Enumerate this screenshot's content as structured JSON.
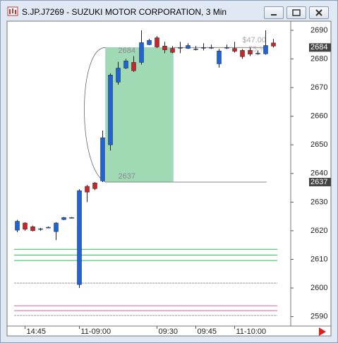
{
  "window_title": "S.JP.J7269 - SUZUKI MOTOR CORPORATION, 3 Min",
  "chart_data": {
    "type": "candlestick",
    "categories": [
      null,
      "14:45",
      null,
      null,
      null,
      null,
      null,
      null,
      "11-09:00",
      null,
      null,
      null,
      null,
      null,
      null,
      null,
      null,
      null,
      "09:30",
      null,
      null,
      null,
      null,
      "09:45",
      null,
      null,
      null,
      null,
      "11-10:00",
      null,
      null,
      null,
      null,
      null
    ],
    "open": [
      2620.2,
      2622.7,
      2621.4,
      2620.7,
      2621.2,
      2619.7,
      2623.9,
      2624.6,
      2601.2,
      2635.5,
      2636.7,
      2637.4,
      2650,
      2671.9,
      2676.8,
      2678.8,
      2678.8,
      2685,
      2687.4,
      2684.5,
      2683.7,
      2684,
      2683.7,
      2683.5,
      2684,
      2684,
      2678.3,
      2684,
      2683.7,
      2683,
      2683,
      2682,
      2681.8,
      2685.6
    ],
    "high": [
      2623.8,
      2623,
      2621.8,
      2621,
      2621.5,
      2623,
      2624.8,
      2624.8,
      2634.5,
      2636,
      2637,
      2655,
      2675,
      2679,
      2680,
      2681,
      2690,
      2687,
      2688,
      2686,
      2684.5,
      2686,
      2685.5,
      2684.5,
      2685.5,
      2685,
      2683.5,
      2685,
      2686,
      2683.5,
      2684,
      2683,
      2690,
      2687
    ],
    "low": [
      2619.5,
      2620,
      2619.8,
      2620,
      2621,
      2616.7,
      2623.7,
      2624.4,
      2600,
      2630,
      2634.2,
      2637,
      2648,
      2671,
      2676.5,
      2675.5,
      2678,
      2684.8,
      2683.8,
      2682,
      2682,
      2682,
      2683.5,
      2683,
      2683,
      2683.5,
      2677,
      2683.5,
      2682.2,
      2680,
      2681,
      2681.5,
      2681.5,
      2684
    ],
    "close": [
      2623.3,
      2620.5,
      2620,
      2620.7,
      2621.2,
      2622.7,
      2624.6,
      2624.6,
      2634,
      2633.5,
      2634.7,
      2652.5,
      2674.4,
      2676.8,
      2679.3,
      2675.9,
      2685.7,
      2686.5,
      2684.2,
      2683.2,
      2682.3,
      2684,
      2684.7,
      2683.5,
      2684,
      2684,
      2682.8,
      2684,
      2682.7,
      2680.8,
      2681.7,
      2682,
      2684.7,
      2684.5
    ],
    "up_color": "#1c64d8",
    "down_color": "#c8262a",
    "ylim": [
      2586.7,
      2693.2
    ],
    "yticks": [
      2590,
      2600,
      2610,
      2620,
      2630,
      2640,
      2650,
      2660,
      2670,
      2680,
      2690
    ],
    "levels": [
      {
        "value": 2613.5,
        "color": "#2fb85a"
      },
      {
        "value": 2611.5,
        "color": "#2fb85a"
      },
      {
        "value": 2609.6,
        "color": "#2fb85a"
      },
      {
        "value": 2601.7,
        "color": "#9a9a9a"
      },
      {
        "value": 2593.8,
        "color": "#e060a8"
      },
      {
        "value": 2592.1,
        "color": "#e060a8"
      },
      {
        "value": 2590.4,
        "color": "#9a9a9a"
      }
    ],
    "measurement": {
      "start": 2637,
      "end": 2684,
      "change_label": "$47.00",
      "percent_label": "75 %",
      "color": "#8fd4a8"
    },
    "price_markers": [
      2684,
      2637
    ]
  }
}
